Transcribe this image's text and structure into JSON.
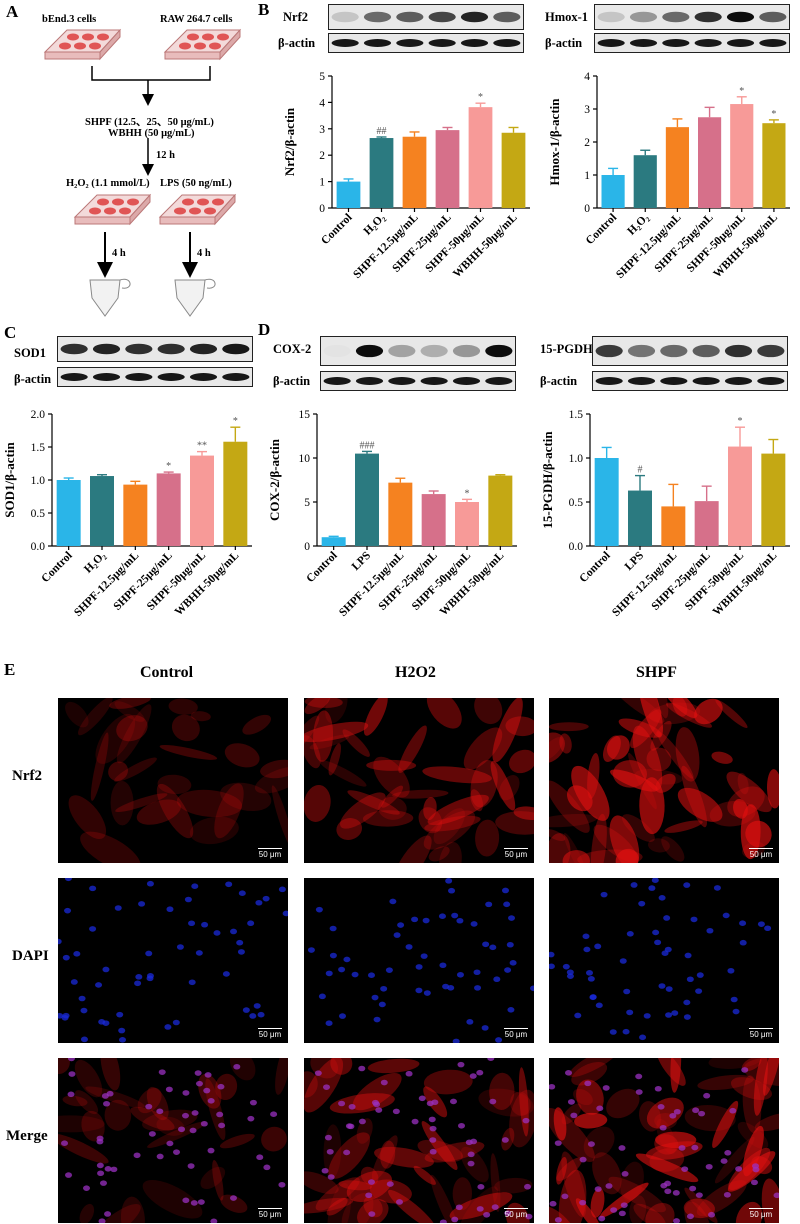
{
  "panel_labels": {
    "a": "A",
    "b": "B",
    "c": "C",
    "d": "D",
    "e": "E"
  },
  "flow": {
    "cell1": "bEnd.3 cells",
    "cell2": "RAW 264.7 cells",
    "treat1": "SHPF (12.5、25、50 μg/mL)",
    "treat2": "WBHH (50 μg/mL)",
    "time1": "12 h",
    "stim1": "H₂O₂ (1.1 mmol/L)",
    "stim2": "LPS (50 ng/mL)",
    "time2": "4 h",
    "time3": "4 h"
  },
  "blots": {
    "nrf2": "Nrf2",
    "hmox": "Hmox-1",
    "sod1": "SOD1",
    "cox2": "COX-2",
    "pgdh": "15-PGDH",
    "actin": "β-actin"
  },
  "chart_data": [
    {
      "id": "nrf2",
      "type": "bar",
      "ylabel": "Nrf2/β-actin",
      "ylim": [
        0,
        5
      ],
      "yticks": [
        0,
        1,
        2,
        3,
        4,
        5
      ],
      "categories": [
        "Control",
        "H₂O₂",
        "SHPF-12.5μg/mL",
        "SHPF-25μg/mL",
        "SHPF-50μg/mL",
        "WBHH-50μg/mL"
      ],
      "values": [
        1.0,
        2.65,
        2.7,
        2.95,
        3.82,
        2.85
      ],
      "errors": [
        0.1,
        0.04,
        0.18,
        0.1,
        0.15,
        0.2
      ],
      "annotations": [
        "",
        "##",
        "",
        "",
        "*",
        ""
      ],
      "colors": [
        "#2ab5e8",
        "#2b7a80",
        "#f58220",
        "#d6708a",
        "#f79a98",
        "#c4a814"
      ]
    },
    {
      "id": "hmox",
      "type": "bar",
      "ylabel": "Hmox-1/β-actin",
      "ylim": [
        0,
        4
      ],
      "yticks": [
        0,
        1,
        2,
        3,
        4
      ],
      "categories": [
        "Control",
        "H₂O₂",
        "SHPF-12.5μg/mL",
        "SHPF-25μg/mL",
        "SHPF-50μg/mL",
        "WBHH-50μg/mL"
      ],
      "values": [
        1.0,
        1.6,
        2.45,
        2.75,
        3.15,
        2.57
      ],
      "errors": [
        0.2,
        0.15,
        0.25,
        0.3,
        0.22,
        0.1
      ],
      "annotations": [
        "",
        "",
        "",
        "",
        "*",
        "*"
      ],
      "colors": [
        "#2ab5e8",
        "#2b7a80",
        "#f58220",
        "#d6708a",
        "#f79a98",
        "#c4a814"
      ]
    },
    {
      "id": "sod1",
      "type": "bar",
      "ylabel": "SOD1/β-actin",
      "ylim": [
        0,
        2
      ],
      "yticks": [
        0.0,
        0.5,
        1.0,
        1.5,
        2.0
      ],
      "categories": [
        "Control",
        "H₂O₂",
        "SHPF-12.5μg/mL",
        "SHPF-25μg/mL",
        "SHPF-50μg/mL",
        "WBHH-50μg/mL"
      ],
      "values": [
        1.0,
        1.06,
        0.93,
        1.1,
        1.37,
        1.58
      ],
      "errors": [
        0.03,
        0.02,
        0.05,
        0.02,
        0.06,
        0.22
      ],
      "annotations": [
        "",
        "",
        "",
        "*",
        "**",
        "*"
      ],
      "colors": [
        "#2ab5e8",
        "#2b7a80",
        "#f58220",
        "#d6708a",
        "#f79a98",
        "#c4a814"
      ]
    },
    {
      "id": "cox2",
      "type": "bar",
      "ylabel": "COX-2/β-actin",
      "ylim": [
        0,
        15
      ],
      "yticks": [
        0,
        5,
        10,
        15
      ],
      "categories": [
        "Control",
        "LPS",
        "SHPF-12.5μg/mL",
        "SHPF-25μg/mL",
        "SHPF-50μg/mL",
        "WBHH-50μg/mL"
      ],
      "values": [
        1.0,
        10.5,
        7.2,
        5.9,
        5.0,
        8.0
      ],
      "errors": [
        0.1,
        0.25,
        0.5,
        0.35,
        0.3,
        0.1
      ],
      "annotations": [
        "",
        "###",
        "",
        "",
        "*",
        ""
      ],
      "colors": [
        "#2ab5e8",
        "#2b7a80",
        "#f58220",
        "#d6708a",
        "#f79a98",
        "#c4a814"
      ]
    },
    {
      "id": "pgdh",
      "type": "bar",
      "ylabel": "15-PGDH/β-actin",
      "ylim": [
        0,
        1.5
      ],
      "yticks": [
        0.0,
        0.5,
        1.0,
        1.5
      ],
      "categories": [
        "Control",
        "LPS",
        "SHPF-12.5μg/mL",
        "SHPF-25μg/mL",
        "SHPF-50μg/mL",
        "WBHH-50μg/mL"
      ],
      "values": [
        1.0,
        0.63,
        0.45,
        0.51,
        1.13,
        1.05
      ],
      "errors": [
        0.12,
        0.17,
        0.25,
        0.17,
        0.22,
        0.16
      ],
      "annotations": [
        "",
        "#",
        "",
        "",
        "*",
        ""
      ],
      "colors": [
        "#2ab5e8",
        "#2b7a80",
        "#f58220",
        "#d6708a",
        "#f79a98",
        "#c4a814"
      ]
    }
  ],
  "micro": {
    "col_headers": [
      "Control",
      "H2O2",
      "SHPF"
    ],
    "row_headers": [
      "Nrf2",
      "DAPI",
      "Merge"
    ],
    "scale": "50 μm"
  }
}
